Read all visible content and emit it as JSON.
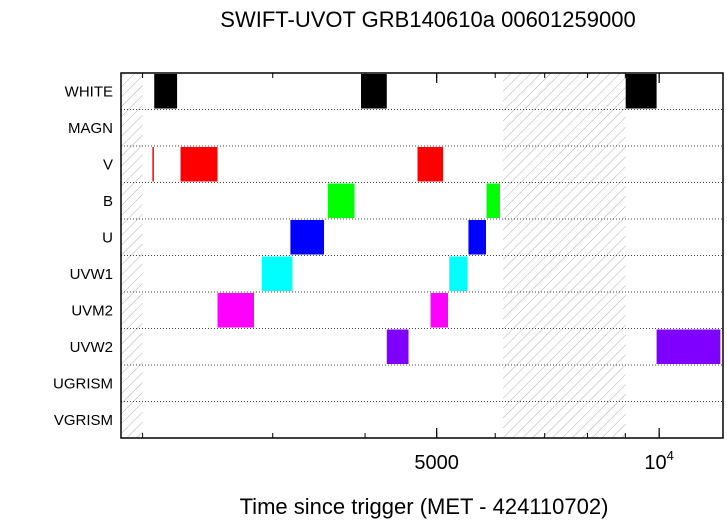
{
  "chart_data": {
    "type": "bar",
    "title": "SWIFT-UVOT GRB140610a 00601259000",
    "xlabel": "Time since trigger (MET - 424110702)",
    "ylabel": "",
    "x_scale": "log",
    "xlim": [
      1870,
      12200
    ],
    "x_ticks": [
      {
        "value": 5000,
        "label": "5000"
      },
      {
        "value": 10000,
        "base": "10",
        "exp": "4"
      }
    ],
    "categories": [
      "WHITE",
      "MAGN",
      "V",
      "B",
      "U",
      "UVW1",
      "UVM2",
      "UVW2",
      "UGRISM",
      "VGRISM"
    ],
    "grid": "dotted horizontal lines between filter rows",
    "series": [
      {
        "filter": "WHITE",
        "color": "#000000",
        "intervals": [
          [
            2074,
            2227
          ],
          [
            3950,
            4280
          ],
          [
            9010,
            9920
          ]
        ]
      },
      {
        "filter": "MAGN",
        "color": "#000000",
        "intervals": []
      },
      {
        "filter": "V",
        "color": "#ff0000",
        "intervals": [
          [
            2062,
            2068
          ],
          [
            2251,
            2526
          ],
          [
            4710,
            5100
          ]
        ]
      },
      {
        "filter": "B",
        "color": "#00ff00",
        "intervals": [
          [
            3563,
            3870
          ],
          [
            5840,
            6090
          ]
        ]
      },
      {
        "filter": "U",
        "color": "#0000ff",
        "intervals": [
          [
            3170,
            3520
          ],
          [
            5520,
            5830
          ]
        ]
      },
      {
        "filter": "UVW1",
        "color": "#00ffff",
        "intervals": [
          [
            2900,
            3190
          ],
          [
            5200,
            5500
          ]
        ]
      },
      {
        "filter": "UVM2",
        "color": "#ff00ff",
        "intervals": [
          [
            2526,
            2830
          ],
          [
            4905,
            5180
          ]
        ]
      },
      {
        "filter": "UVW2",
        "color": "#7f00ff",
        "intervals": [
          [
            4280,
            4580
          ],
          [
            9920,
            12100
          ]
        ]
      },
      {
        "filter": "UGRISM",
        "color": "#000000",
        "intervals": []
      },
      {
        "filter": "VGRISM",
        "color": "#000000",
        "intervals": []
      }
    ],
    "hatched_regions": [
      [
        1870,
        2000
      ],
      [
        6150,
        9010
      ]
    ]
  }
}
